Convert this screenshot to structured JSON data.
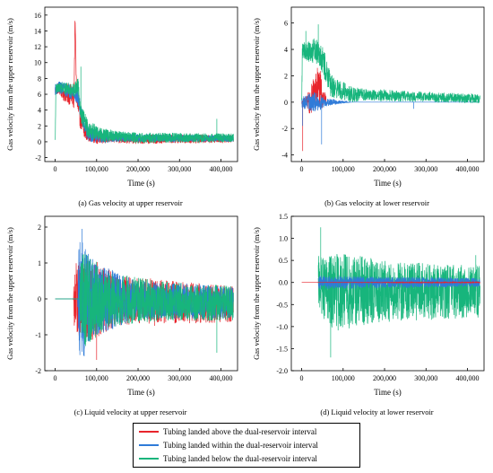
{
  "chart_data": [
    {
      "type": "line",
      "caption": "(a) Gas velocity at upper reservoir",
      "xlabel": "Time (s)",
      "ylabel": "Gas velocity from the upper reservoir (m/s)",
      "xlim": [
        -25000,
        440000
      ],
      "ylim": [
        -2.5,
        17
      ],
      "xticks": [
        0,
        100000,
        200000,
        300000,
        400000
      ],
      "xtick_labels": [
        "0",
        "100,000",
        "200,000",
        "300,000",
        "400,000"
      ],
      "yticks": [
        -2,
        0,
        2,
        4,
        6,
        8,
        10,
        12,
        14,
        16
      ],
      "ytick_labels": [
        "-2",
        "0",
        "2",
        "4",
        "6",
        "8",
        "10",
        "12",
        "14",
        "16"
      ],
      "series": [
        {
          "color": "#e8242c",
          "start": 0,
          "end": 430000,
          "points": [
            [
              0,
              6.5
            ],
            [
              8000,
              6.8
            ],
            [
              20000,
              6.2
            ],
            [
              35000,
              6.0
            ],
            [
              45000,
              5.5
            ],
            [
              48000,
              15.2
            ],
            [
              52000,
              5.0
            ],
            [
              60000,
              3.0
            ],
            [
              70000,
              1.2
            ],
            [
              100000,
              0.5
            ],
            [
              200000,
              0.3
            ],
            [
              430000,
              0.4
            ]
          ],
          "noise": [
            [
              0,
              0.6
            ],
            [
              40000,
              1.5
            ],
            [
              70000,
              1.0
            ],
            [
              120000,
              0.6
            ],
            [
              430000,
              0.5
            ]
          ]
        },
        {
          "color": "#2f7bd8",
          "start": 0,
          "end": 430000,
          "points": [
            [
              0,
              6.6
            ],
            [
              10000,
              6.9
            ],
            [
              30000,
              6.5
            ],
            [
              45000,
              6.2
            ],
            [
              55000,
              5.5
            ],
            [
              65000,
              3.0
            ],
            [
              80000,
              1.0
            ],
            [
              120000,
              0.5
            ],
            [
              430000,
              0.4
            ]
          ],
          "noise": [
            [
              0,
              0.7
            ],
            [
              45000,
              1.0
            ],
            [
              80000,
              1.0
            ],
            [
              150000,
              0.5
            ],
            [
              430000,
              0.4
            ]
          ]
        },
        {
          "color": "#17b57c",
          "start": 0,
          "end": 430000,
          "points": [
            [
              0,
              0.0
            ],
            [
              1500,
              6.7
            ],
            [
              10000,
              6.9
            ],
            [
              30000,
              6.7
            ],
            [
              45000,
              6.5
            ],
            [
              55000,
              7.2
            ],
            [
              62000,
              3.5
            ],
            [
              80000,
              1.5
            ],
            [
              120000,
              0.8
            ],
            [
              200000,
              0.5
            ],
            [
              430000,
              0.5
            ]
          ],
          "noise": [
            [
              0,
              0.5
            ],
            [
              50000,
              1.0
            ],
            [
              70000,
              1.2
            ],
            [
              150000,
              0.7
            ],
            [
              430000,
              0.55
            ]
          ],
          "spikes": [
            [
              390000,
              2.9
            ],
            [
              62000,
              9.5
            ]
          ]
        }
      ]
    },
    {
      "type": "line",
      "caption": "(b) Gas velocity at lower reservoir",
      "xlabel": "Time (s)",
      "ylabel": "Gas velocity from the upper reservoir (m/s)",
      "xlim": [
        -25000,
        440000
      ],
      "ylim": [
        -4.5,
        7.2
      ],
      "xticks": [
        0,
        100000,
        200000,
        300000,
        400000
      ],
      "xtick_labels": [
        "0",
        "100,000",
        "200,000",
        "300,000",
        "400,000"
      ],
      "yticks": [
        -4,
        -2,
        0,
        2,
        4,
        6
      ],
      "ytick_labels": [
        "-4",
        "-2",
        "0",
        "2",
        "4",
        "6"
      ],
      "series": [
        {
          "color": "#e8242c",
          "start": 0,
          "end": 60000,
          "points": [
            [
              0,
              0.0
            ],
            [
              20000,
              0.0
            ],
            [
              30000,
              0.8
            ],
            [
              40000,
              1.2
            ],
            [
              50000,
              0.5
            ],
            [
              60000,
              0.0
            ]
          ],
          "noise": [
            [
              0,
              0.1
            ],
            [
              25000,
              1.2
            ],
            [
              45000,
              1.5
            ],
            [
              60000,
              0.2
            ]
          ],
          "spikes": [
            [
              2500,
              -3.7
            ],
            [
              38000,
              2.6
            ]
          ]
        },
        {
          "color": "#2f7bd8",
          "start": 0,
          "end": 430000,
          "points": [
            [
              0,
              0.0
            ],
            [
              430000,
              0.0
            ]
          ],
          "noise": [
            [
              0,
              0.4
            ],
            [
              30000,
              0.8
            ],
            [
              60000,
              0.3
            ],
            [
              120000,
              0.0
            ],
            [
              430000,
              0.0
            ]
          ],
          "spikes": [
            [
              2000,
              -1.8
            ],
            [
              48000,
              -3.2
            ],
            [
              270000,
              -0.5
            ]
          ]
        },
        {
          "color": "#17b57c",
          "start": 0,
          "end": 430000,
          "points": [
            [
              0,
              0.0
            ],
            [
              1500,
              4.0
            ],
            [
              20000,
              3.8
            ],
            [
              40000,
              4.0
            ],
            [
              50000,
              3.3
            ],
            [
              70000,
              1.2
            ],
            [
              120000,
              0.6
            ],
            [
              430000,
              0.25
            ]
          ],
          "noise": [
            [
              0,
              0.6
            ],
            [
              45000,
              1.2
            ],
            [
              80000,
              0.8
            ],
            [
              150000,
              0.45
            ],
            [
              430000,
              0.35
            ]
          ],
          "spikes": [
            [
              10000,
              5.4
            ],
            [
              40000,
              5.9
            ]
          ]
        }
      ]
    },
    {
      "type": "line",
      "caption": "(c) Liquid velocity at upper reservoir",
      "xlabel": "Time (s)",
      "ylabel": "Gas velocity from the upper reservoir (m/s)",
      "xlim": [
        -25000,
        440000
      ],
      "ylim": [
        -2.0,
        2.3
      ],
      "xticks": [
        0,
        100000,
        200000,
        300000,
        400000
      ],
      "xtick_labels": [
        "0",
        "100,000",
        "200,000",
        "300,000",
        "400,000"
      ],
      "yticks": [
        -2,
        -1,
        0,
        1,
        2
      ],
      "ytick_labels": [
        "-2",
        "-1",
        "0",
        "1",
        "2"
      ],
      "series": [
        {
          "color": "#e8242c",
          "start": 0,
          "end": 430000,
          "points": [
            [
              0,
              0.0
            ],
            [
              45000,
              0.0
            ],
            [
              50000,
              0.0
            ],
            [
              430000,
              -0.15
            ]
          ],
          "noise": [
            [
              0,
              0.0
            ],
            [
              44000,
              0.0
            ],
            [
              46000,
              1.0
            ],
            [
              80000,
              1.2
            ],
            [
              150000,
              0.7
            ],
            [
              430000,
              0.5
            ]
          ],
          "spikes": [
            [
              100000,
              -1.7
            ],
            [
              240000,
              -0.75
            ]
          ]
        },
        {
          "color": "#2f7bd8",
          "start": 0,
          "end": 430000,
          "points": [
            [
              0,
              0.0
            ],
            [
              55000,
              0.0
            ],
            [
              430000,
              -0.1
            ]
          ],
          "noise": [
            [
              0,
              0.0
            ],
            [
              54000,
              0.0
            ],
            [
              56000,
              1.8
            ],
            [
              100000,
              1.0
            ],
            [
              200000,
              0.55
            ],
            [
              430000,
              0.45
            ]
          ],
          "spikes": [
            [
              65000,
              1.95
            ],
            [
              70000,
              -1.6
            ]
          ]
        },
        {
          "color": "#17b57c",
          "start": 0,
          "end": 430000,
          "points": [
            [
              0,
              0.0
            ],
            [
              60000,
              0.0
            ],
            [
              430000,
              -0.12
            ]
          ],
          "noise": [
            [
              0,
              0.0
            ],
            [
              58000,
              0.0
            ],
            [
              62000,
              1.5
            ],
            [
              120000,
              0.8
            ],
            [
              250000,
              0.55
            ],
            [
              430000,
              0.5
            ]
          ],
          "spikes": [
            [
              390000,
              -1.5
            ]
          ]
        }
      ]
    },
    {
      "type": "line",
      "caption": "(d) Liquid velocity at lower reservoir",
      "xlabel": "Time (s)",
      "ylabel": "Gas velocity from the upper reservoir (m/s)",
      "xlim": [
        -25000,
        440000
      ],
      "ylim": [
        -2.0,
        1.5
      ],
      "xticks": [
        0,
        100000,
        200000,
        300000,
        400000
      ],
      "xtick_labels": [
        "0",
        "100,000",
        "200,000",
        "300,000",
        "400,000"
      ],
      "yticks": [
        -2.0,
        -1.5,
        -1.0,
        -0.5,
        0.0,
        0.5,
        1.0,
        1.5
      ],
      "ytick_labels": [
        "-2.0",
        "-1.5",
        "-1.0",
        "-0.5",
        "0.0",
        "0.5",
        "1.0",
        "1.5"
      ],
      "series": [
        {
          "color": "#17b57c",
          "start": 40000,
          "end": 430000,
          "points": [
            [
              40000,
              0.0
            ],
            [
              60000,
              -0.2
            ],
            [
              430000,
              -0.2
            ]
          ],
          "noise": [
            [
              40000,
              0.6
            ],
            [
              80000,
              0.9
            ],
            [
              200000,
              0.7
            ],
            [
              430000,
              0.6
            ]
          ],
          "spikes": [
            [
              46000,
              1.25
            ],
            [
              70000,
              -1.7
            ],
            [
              420000,
              0.62
            ]
          ]
        },
        {
          "color": "#2f7bd8",
          "start": 40000,
          "end": 430000,
          "points": [
            [
              40000,
              0.0
            ],
            [
              430000,
              0.0
            ]
          ],
          "noise": [
            [
              40000,
              0.15
            ],
            [
              430000,
              0.1
            ]
          ]
        },
        {
          "color": "#e8242c",
          "start": 0,
          "end": 430000,
          "points": [
            [
              0,
              0.0
            ],
            [
              430000,
              0.0
            ]
          ],
          "noise": [
            [
              0,
              0.0
            ],
            [
              430000,
              0.01
            ]
          ]
        }
      ]
    }
  ],
  "legend": [
    {
      "label": "Tubing landed above the dual-reservoir interval",
      "color": "#e8242c"
    },
    {
      "label": "Tubing landed within the dual-reservoir interval",
      "color": "#2f7bd8"
    },
    {
      "label": "Tubing landed below the dual-reservoir interval",
      "color": "#17b57c"
    }
  ]
}
